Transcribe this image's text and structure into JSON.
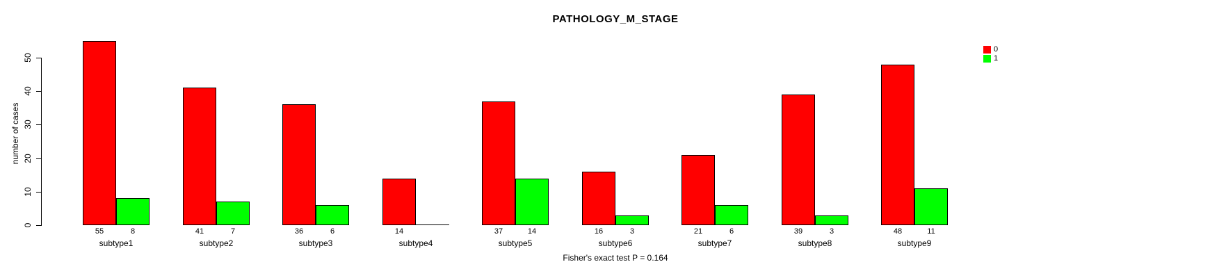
{
  "chart_data": {
    "type": "bar",
    "title": "PATHOLOGY_M_STAGE",
    "ylabel": "number of cases",
    "xlabel": "",
    "categories": [
      "subtype1",
      "subtype2",
      "subtype3",
      "subtype4",
      "subtype5",
      "subtype6",
      "subtype7",
      "subtype8",
      "subtype9"
    ],
    "series": [
      {
        "name": "0",
        "color": "#ff0000",
        "values": [
          55,
          41,
          36,
          14,
          37,
          16,
          21,
          39,
          48
        ]
      },
      {
        "name": "1",
        "color": "#00ff00",
        "values": [
          8,
          7,
          6,
          0,
          14,
          3,
          6,
          3,
          11
        ]
      }
    ],
    "bar_value_labels": [
      [
        "55",
        "41",
        "36",
        "14",
        "37",
        "16",
        "21",
        "39",
        "48"
      ],
      [
        "8",
        "7",
        "6",
        "",
        "14",
        "3",
        "6",
        "3",
        "11"
      ]
    ],
    "ylim": [
      0,
      55
    ],
    "yticks": [
      0,
      10,
      20,
      30,
      40,
      50
    ],
    "grid": false,
    "legend": {
      "position": "top-right",
      "entries": [
        {
          "label": "0",
          "color": "#ff0000"
        },
        {
          "label": "1",
          "color": "#00ff00"
        }
      ]
    },
    "annotation": "Fisher's exact test P = 0.164",
    "bar_border_color": "#000000"
  }
}
